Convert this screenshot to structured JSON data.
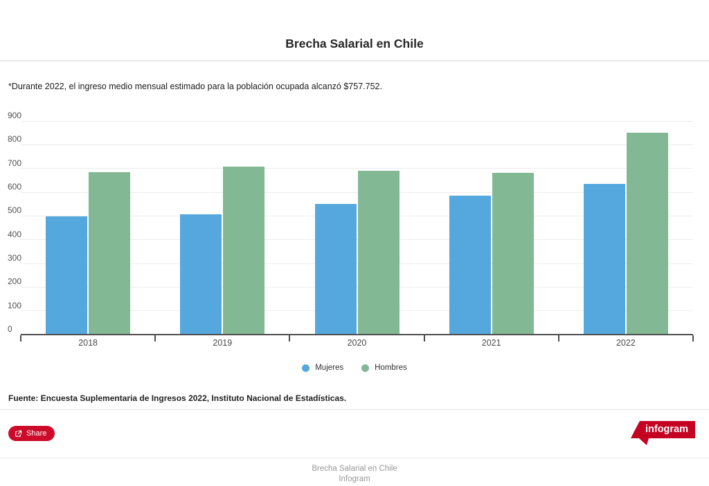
{
  "title": "Brecha Salarial en Chile",
  "subtitle": "*Durante 2022, el ingreso medio mensual estimado para la población ocupada alcanzó $757.752.",
  "chart_data": {
    "type": "bar",
    "title": "Brecha Salarial en Chile",
    "categories": [
      "2018",
      "2019",
      "2020",
      "2021",
      "2022"
    ],
    "series": [
      {
        "name": "Mujeres",
        "color": "#55a8de",
        "values": [
          496,
          505,
          550,
          585,
          634
        ]
      },
      {
        "name": "Hombres",
        "color": "#82b994",
        "values": [
          683,
          705,
          690,
          680,
          850
        ]
      }
    ],
    "xlabel": "",
    "ylabel": "",
    "ylim": [
      0,
      900
    ],
    "ytick_step": 100,
    "grid": true,
    "legend_position": "bottom"
  },
  "colors": {
    "mujeres": "#55a8de",
    "hombres": "#82b994",
    "gridline": "#ececec",
    "axis": "#4d4d4d",
    "share_red": "#cb0b29",
    "logo_red": "#c40221"
  },
  "source": "Fuente: Encuesta Suplementaria de Ingresos 2022,  Instituto Nacional de Estadísticas.",
  "share": {
    "label": "Share"
  },
  "logo": {
    "label": "infogram"
  },
  "footer": {
    "line1": "Brecha Salarial en Chile",
    "line2": "Infogram"
  }
}
